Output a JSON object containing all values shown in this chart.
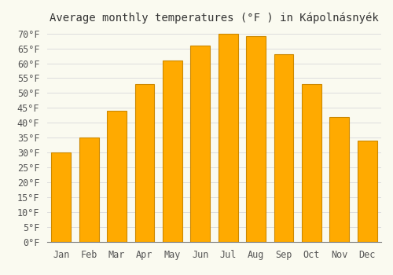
{
  "title": "Average monthly temperatures (°F ) in Kápolnásnyék",
  "months": [
    "Jan",
    "Feb",
    "Mar",
    "Apr",
    "May",
    "Jun",
    "Jul",
    "Aug",
    "Sep",
    "Oct",
    "Nov",
    "Dec"
  ],
  "temperatures": [
    30,
    35,
    44,
    53,
    61,
    66,
    70,
    69,
    63,
    53,
    42,
    34
  ],
  "bar_color": "#FFAA00",
  "bar_edge_color": "#CC8800",
  "background_color": "#FAFAF0",
  "grid_color": "#DDDDDD",
  "ylim_min": 0,
  "ylim_max": 70,
  "ytick_step": 5,
  "title_fontsize": 10,
  "tick_fontsize": 8.5
}
